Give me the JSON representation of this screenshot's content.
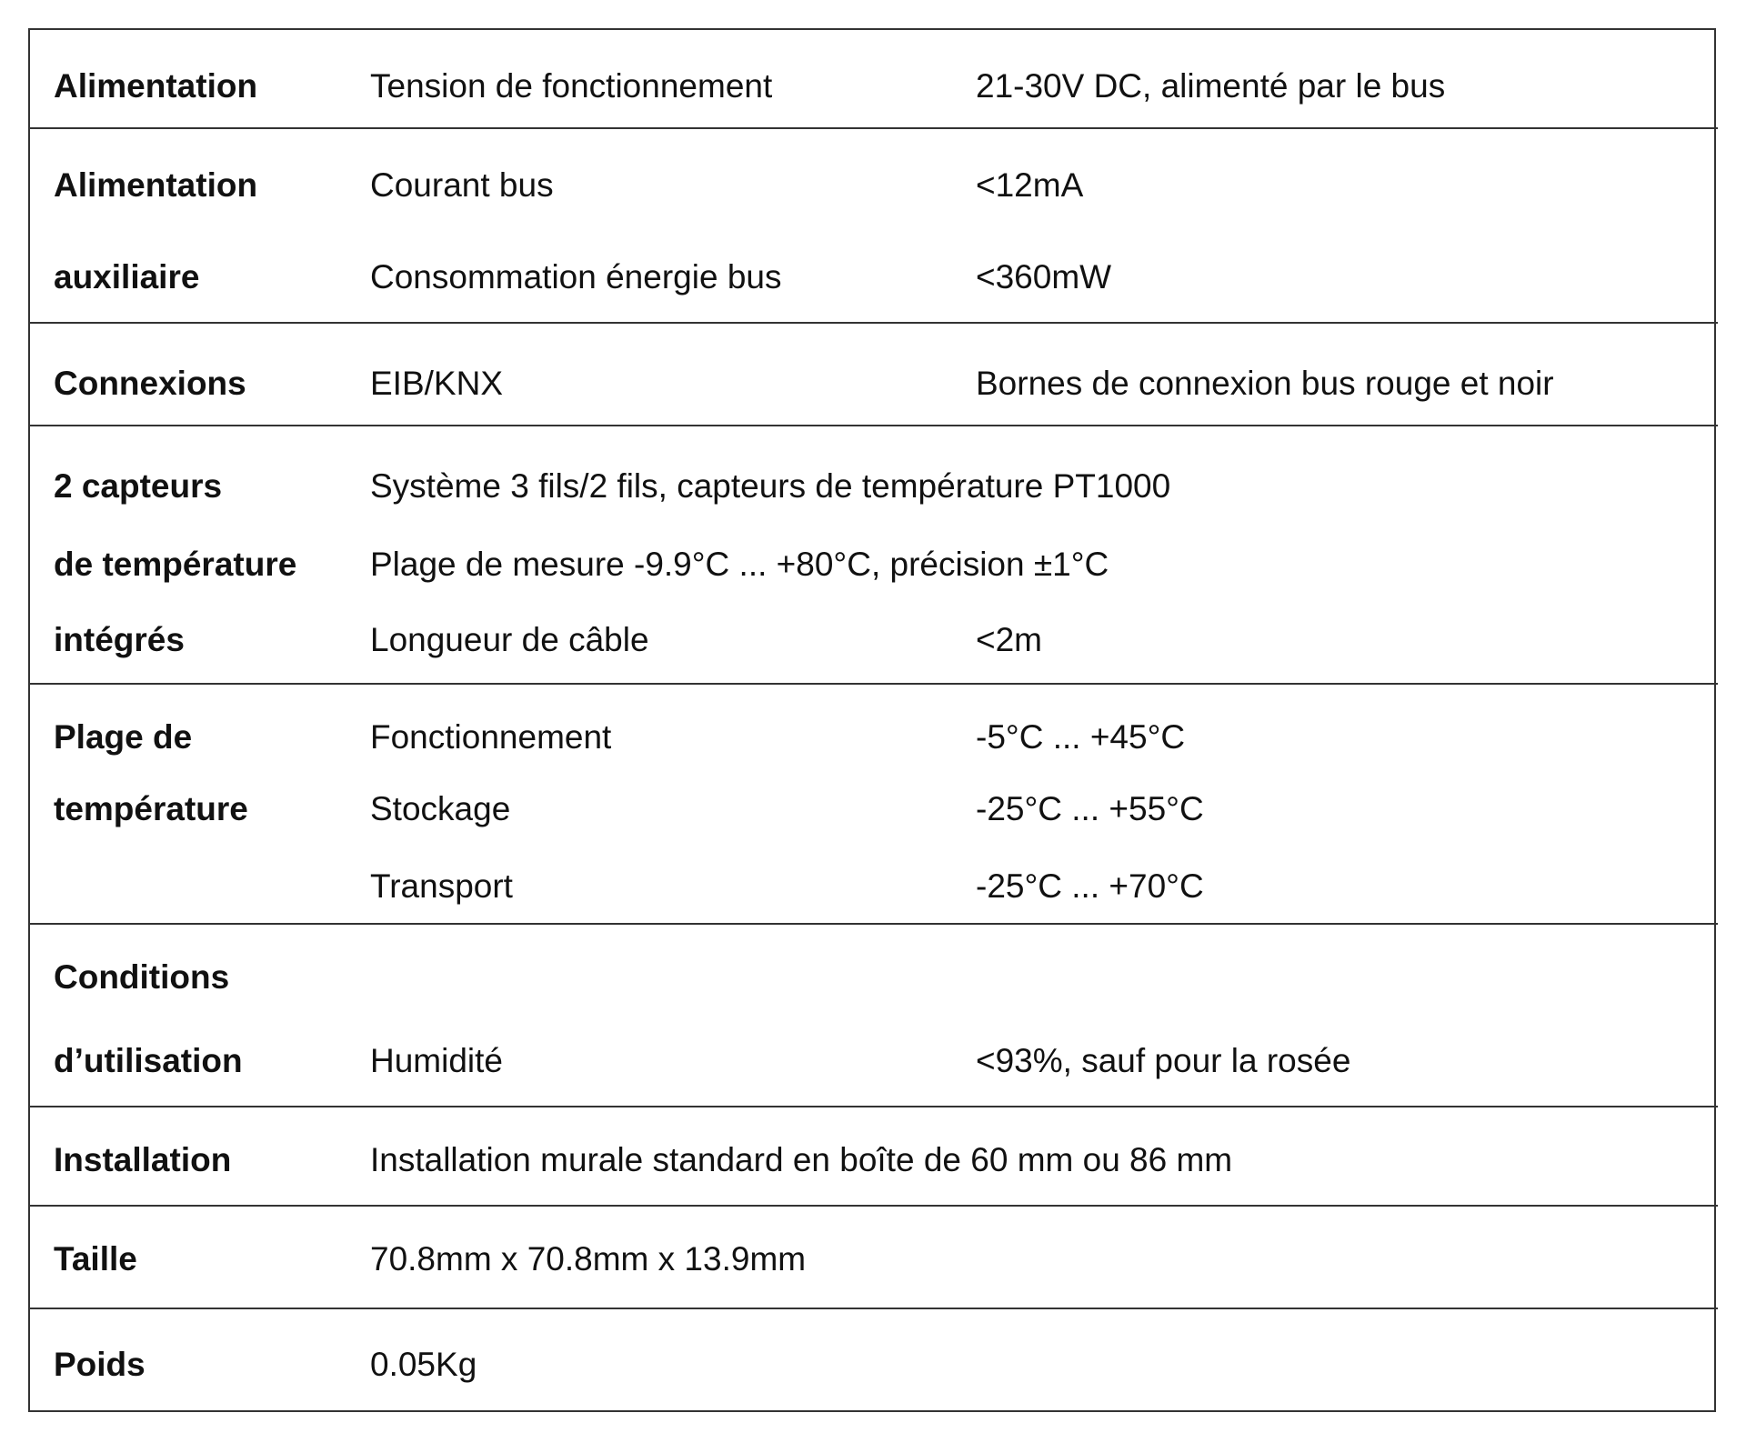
{
  "rows": [
    {
      "label": [
        "Alimentation"
      ],
      "specs": [
        {
          "name": "Tension de fonctionnement",
          "value": "21-30V DC, alimenté par le bus"
        }
      ]
    },
    {
      "label": [
        "Alimentation",
        "auxiliaire"
      ],
      "specs": [
        {
          "name": "Courant bus",
          "value": "<12mA"
        },
        {
          "name": "Consommation énergie bus",
          "value": "<360mW"
        }
      ]
    },
    {
      "label": [
        "Connexions"
      ],
      "specs": [
        {
          "name": "EIB/KNX",
          "value": "Bornes de connexion bus rouge et noir"
        }
      ]
    },
    {
      "label": [
        "2 capteurs",
        "de température",
        "intégrés"
      ],
      "specs": [
        {
          "name": "Système 3 fils/2 fils, capteurs de température PT1000"
        },
        {
          "name": "Plage de mesure -9.9°C ... +80°C, précision ±1°C"
        },
        {
          "name": "Longueur de câble",
          "value": "<2m"
        }
      ]
    },
    {
      "label": [
        "Plage de",
        "température"
      ],
      "specs": [
        {
          "name": "Fonctionnement",
          "value": "-5°C ... +45°C"
        },
        {
          "name": "Stockage",
          "value": "-25°C ... +55°C"
        },
        {
          "name": "Transport",
          "value": "-25°C ... +70°C"
        }
      ]
    },
    {
      "label": [
        "Conditions",
        "d’utilisation"
      ],
      "specs": [
        {
          "name": "Humidité",
          "value": "<93%, sauf pour la rosée"
        }
      ]
    },
    {
      "label": [
        "Installation"
      ],
      "specs": [
        {
          "name": "Installation murale standard en boîte de 60 mm ou 86 mm"
        }
      ]
    },
    {
      "label": [
        "Taille"
      ],
      "specs": [
        {
          "name": "70.8mm x 70.8mm x 13.9mm"
        }
      ]
    },
    {
      "label": [
        "Poids"
      ],
      "specs": [
        {
          "name": "0.05Kg"
        }
      ]
    }
  ]
}
